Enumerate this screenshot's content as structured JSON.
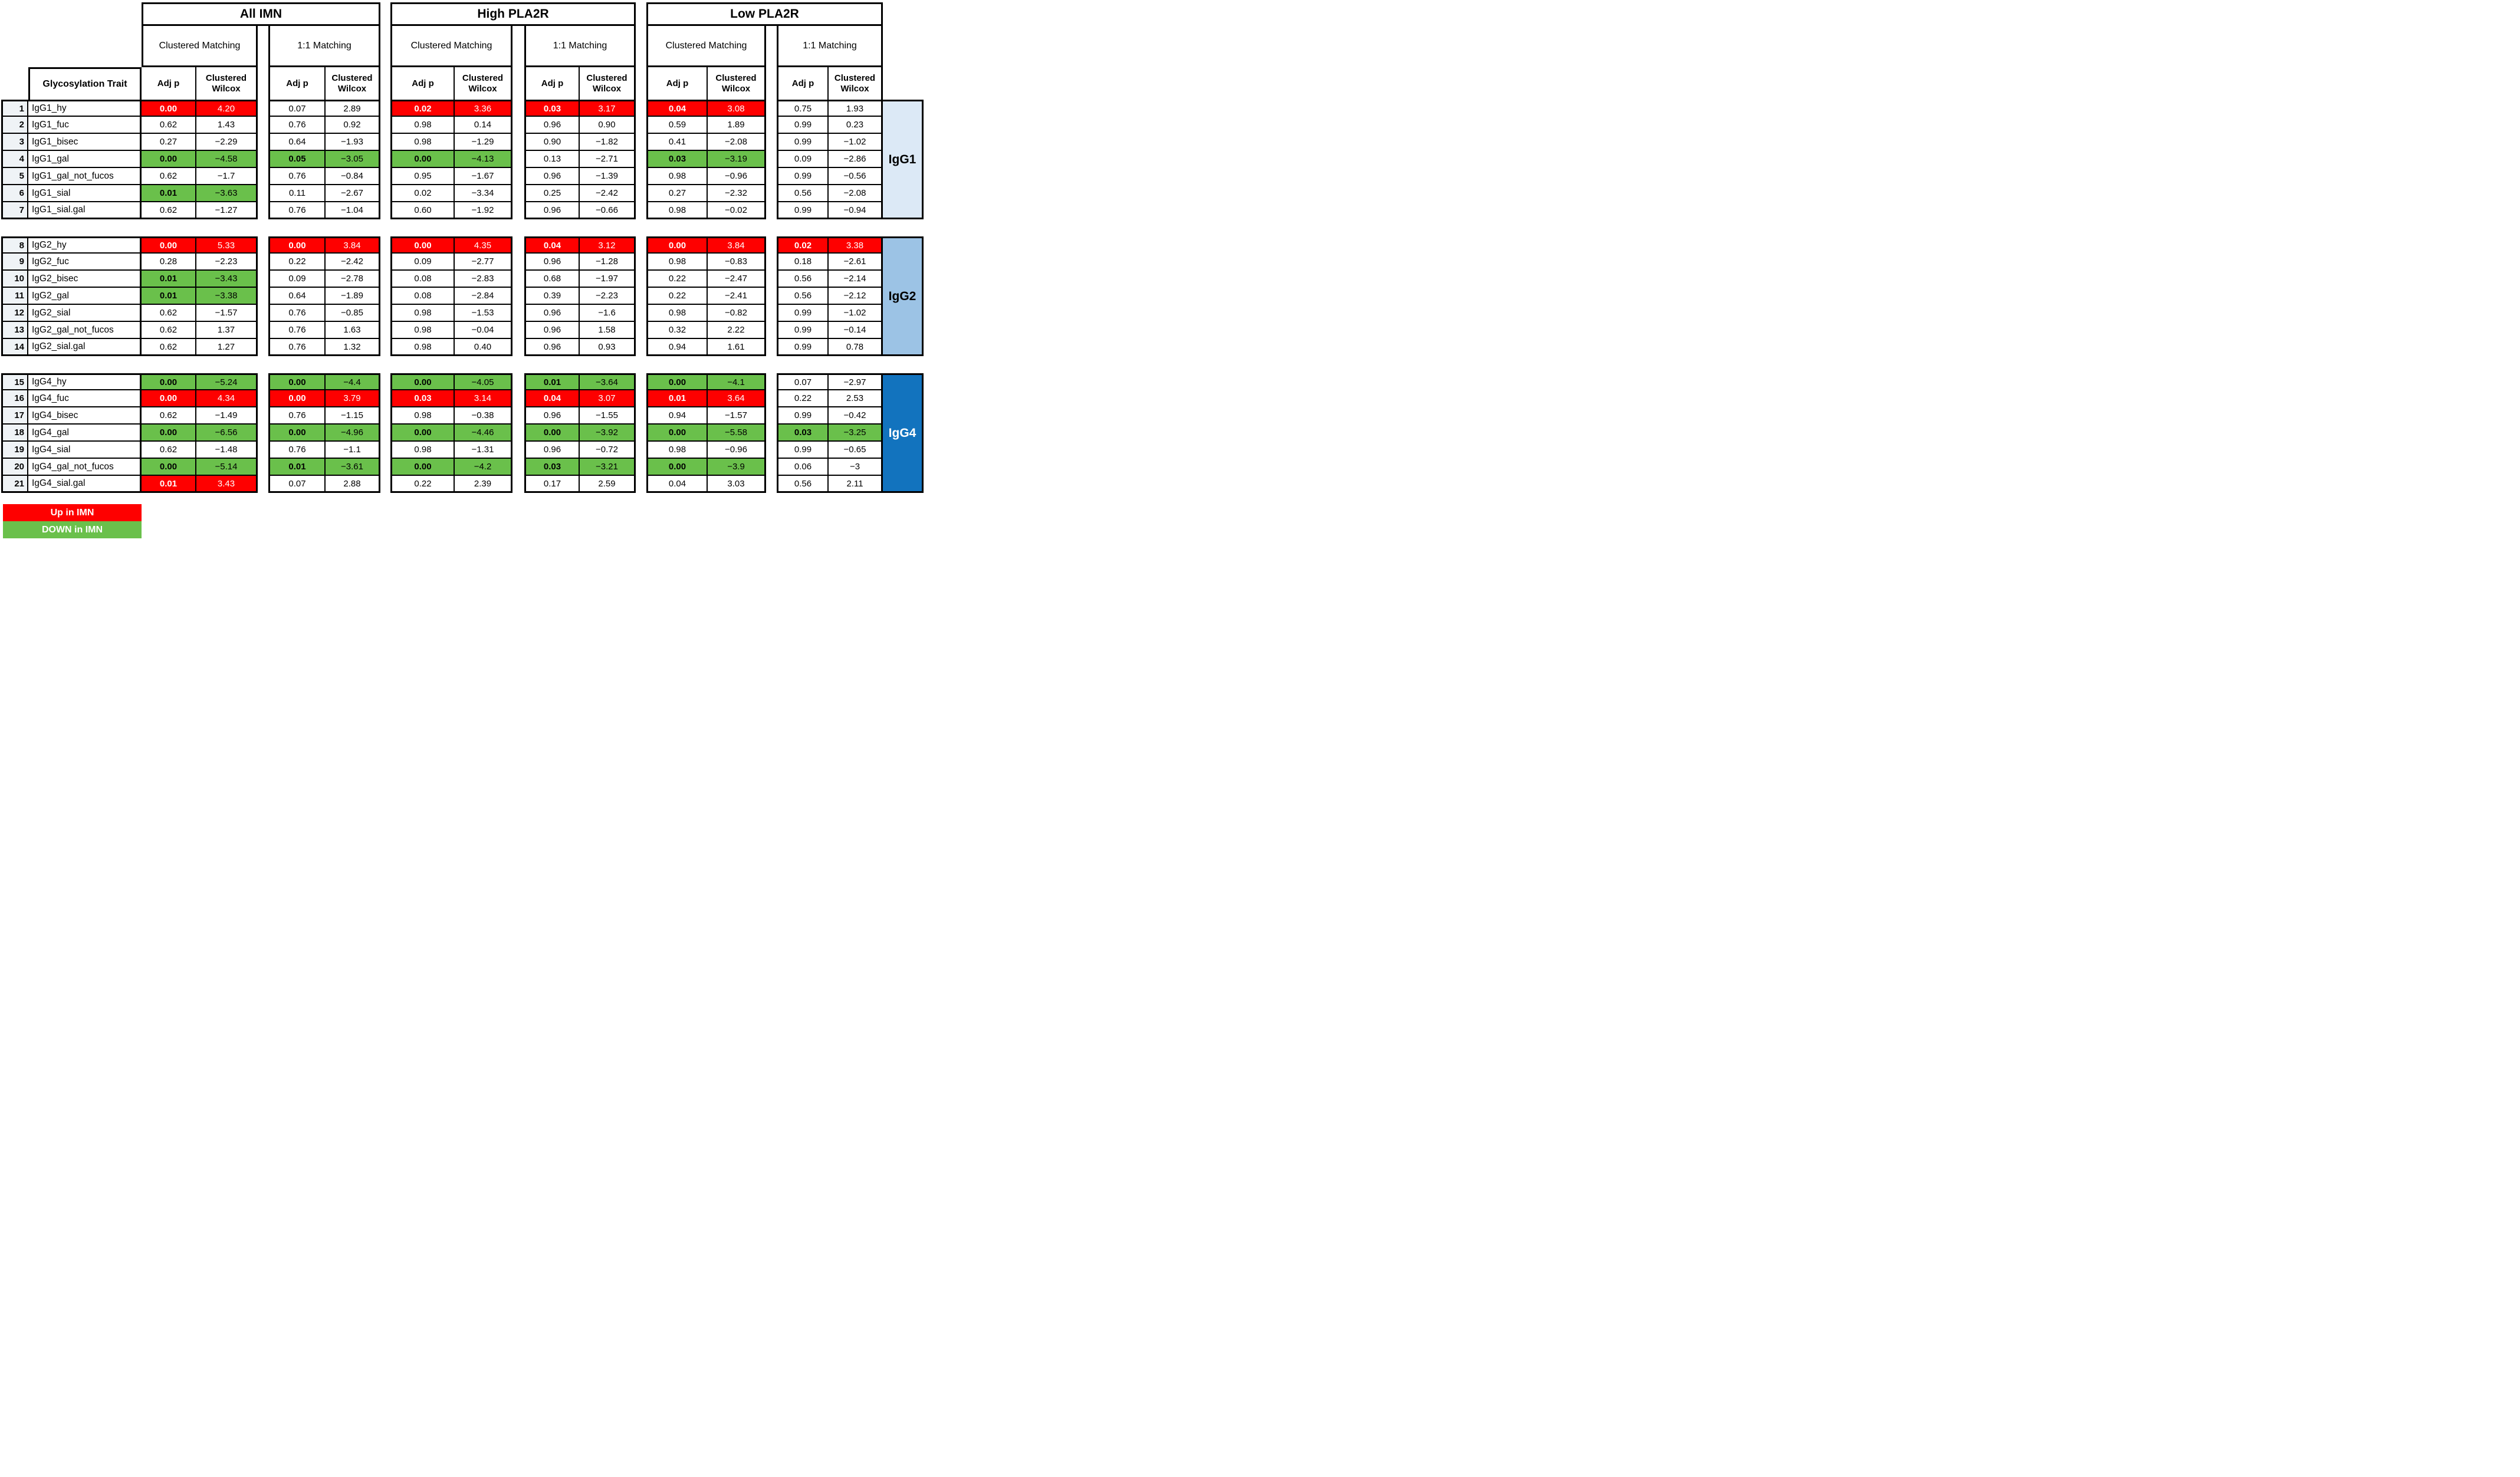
{
  "colors": {
    "up_in_imn": "#FE0000",
    "down_in_imn": "#6AC04B",
    "igg1_bar": "#DCE9F6",
    "igg2_bar": "#9CC3E5",
    "igg4_bar": "#1273BE",
    "row_number_bg": "#EFF3F6"
  },
  "legend": [
    {
      "label": "Up in IMN",
      "color_key": "up_in_imn"
    },
    {
      "label": "DOWN in IMN",
      "color_key": "down_in_imn"
    }
  ],
  "chart_data": {
    "type": "table",
    "title": "",
    "row_label_header": "Glycosylation Trait",
    "groups": [
      "All IMN",
      "High PLA2R",
      "Low PLA2R"
    ],
    "matching": [
      "Clustered Matching",
      "1:1 Matching"
    ],
    "stat_columns": [
      "Adj p",
      "Clustered Wilcox"
    ],
    "cell_order_note": "cells = [All-Clustered, All-1:1, High-Clustered, High-1:1, Low-Clustered, Low-1:1]; each cell = [Adj p, Clustered Wilcox, highlight('up'|'down'|'')]",
    "blocks": [
      {
        "group_label": "IgG1",
        "bar_color_key": "igg1_bar",
        "bar_text_color": "#000000",
        "rows": [
          {
            "num": "1",
            "trait": "IgG1_hy",
            "cells": [
              [
                "0.00",
                "4.20",
                "up"
              ],
              [
                "0.07",
                "2.89",
                ""
              ],
              [
                "0.02",
                "3.36",
                "up"
              ],
              [
                "0.03",
                "3.17",
                "up"
              ],
              [
                "0.04",
                "3.08",
                "up"
              ],
              [
                "0.75",
                "1.93",
                ""
              ]
            ]
          },
          {
            "num": "2",
            "trait": "IgG1_fuc",
            "cells": [
              [
                "0.62",
                "1.43",
                ""
              ],
              [
                "0.76",
                "0.92",
                ""
              ],
              [
                "0.98",
                "0.14",
                ""
              ],
              [
                "0.96",
                "0.90",
                ""
              ],
              [
                "0.59",
                "1.89",
                ""
              ],
              [
                "0.99",
                "0.23",
                ""
              ]
            ]
          },
          {
            "num": "3",
            "trait": "IgG1_bisec",
            "cells": [
              [
                "0.27",
                "−2.29",
                ""
              ],
              [
                "0.64",
                "−1.93",
                ""
              ],
              [
                "0.98",
                "−1.29",
                ""
              ],
              [
                "0.90",
                "−1.82",
                ""
              ],
              [
                "0.41",
                "−2.08",
                ""
              ],
              [
                "0.99",
                "−1.02",
                ""
              ]
            ]
          },
          {
            "num": "4",
            "trait": "IgG1_gal",
            "cells": [
              [
                "0.00",
                "−4.58",
                "down"
              ],
              [
                "0.05",
                "−3.05",
                "down"
              ],
              [
                "0.00",
                "−4.13",
                "down"
              ],
              [
                "0.13",
                "−2.71",
                ""
              ],
              [
                "0.03",
                "−3.19",
                "down"
              ],
              [
                "0.09",
                "−2.86",
                ""
              ]
            ]
          },
          {
            "num": "5",
            "trait": "IgG1_gal_not_fucos",
            "cells": [
              [
                "0.62",
                "−1.7",
                ""
              ],
              [
                "0.76",
                "−0.84",
                ""
              ],
              [
                "0.95",
                "−1.67",
                ""
              ],
              [
                "0.96",
                "−1.39",
                ""
              ],
              [
                "0.98",
                "−0.96",
                ""
              ],
              [
                "0.99",
                "−0.56",
                ""
              ]
            ]
          },
          {
            "num": "6",
            "trait": "IgG1_sial",
            "cells": [
              [
                "0.01",
                "−3.63",
                "down"
              ],
              [
                "0.11",
                "−2.67",
                ""
              ],
              [
                "0.02",
                "−3.34",
                ""
              ],
              [
                "0.25",
                "−2.42",
                ""
              ],
              [
                "0.27",
                "−2.32",
                ""
              ],
              [
                "0.56",
                "−2.08",
                ""
              ]
            ]
          },
          {
            "num": "7",
            "trait": "IgG1_sial.gal",
            "cells": [
              [
                "0.62",
                "−1.27",
                ""
              ],
              [
                "0.76",
                "−1.04",
                ""
              ],
              [
                "0.60",
                "−1.92",
                ""
              ],
              [
                "0.96",
                "−0.66",
                ""
              ],
              [
                "0.98",
                "−0.02",
                ""
              ],
              [
                "0.99",
                "−0.94",
                ""
              ]
            ]
          }
        ]
      },
      {
        "group_label": "IgG2",
        "bar_color_key": "igg2_bar",
        "bar_text_color": "#000000",
        "rows": [
          {
            "num": "8",
            "trait": "IgG2_hy",
            "cells": [
              [
                "0.00",
                "5.33",
                "up"
              ],
              [
                "0.00",
                "3.84",
                "up"
              ],
              [
                "0.00",
                "4.35",
                "up"
              ],
              [
                "0.04",
                "3.12",
                "up"
              ],
              [
                "0.00",
                "3.84",
                "up"
              ],
              [
                "0.02",
                "3.38",
                "up"
              ]
            ]
          },
          {
            "num": "9",
            "trait": "IgG2_fuc",
            "cells": [
              [
                "0.28",
                "−2.23",
                ""
              ],
              [
                "0.22",
                "−2.42",
                ""
              ],
              [
                "0.09",
                "−2.77",
                ""
              ],
              [
                "0.96",
                "−1.28",
                ""
              ],
              [
                "0.98",
                "−0.83",
                ""
              ],
              [
                "0.18",
                "−2.61",
                ""
              ]
            ]
          },
          {
            "num": "10",
            "trait": "IgG2_bisec",
            "cells": [
              [
                "0.01",
                "−3.43",
                "down"
              ],
              [
                "0.09",
                "−2.78",
                ""
              ],
              [
                "0.08",
                "−2.83",
                ""
              ],
              [
                "0.68",
                "−1.97",
                ""
              ],
              [
                "0.22",
                "−2.47",
                ""
              ],
              [
                "0.56",
                "−2.14",
                ""
              ]
            ]
          },
          {
            "num": "11",
            "trait": "IgG2_gal",
            "cells": [
              [
                "0.01",
                "−3.38",
                "down"
              ],
              [
                "0.64",
                "−1.89",
                ""
              ],
              [
                "0.08",
                "−2.84",
                ""
              ],
              [
                "0.39",
                "−2.23",
                ""
              ],
              [
                "0.22",
                "−2.41",
                ""
              ],
              [
                "0.56",
                "−2.12",
                ""
              ]
            ]
          },
          {
            "num": "12",
            "trait": "IgG2_sial",
            "cells": [
              [
                "0.62",
                "−1.57",
                ""
              ],
              [
                "0.76",
                "−0.85",
                ""
              ],
              [
                "0.98",
                "−1.53",
                ""
              ],
              [
                "0.96",
                "−1.6",
                ""
              ],
              [
                "0.98",
                "−0.82",
                ""
              ],
              [
                "0.99",
                "−1.02",
                ""
              ]
            ]
          },
          {
            "num": "13",
            "trait": "IgG2_gal_not_fucos",
            "cells": [
              [
                "0.62",
                "1.37",
                ""
              ],
              [
                "0.76",
                "1.63",
                ""
              ],
              [
                "0.98",
                "−0.04",
                ""
              ],
              [
                "0.96",
                "1.58",
                ""
              ],
              [
                "0.32",
                "2.22",
                ""
              ],
              [
                "0.99",
                "−0.14",
                ""
              ]
            ]
          },
          {
            "num": "14",
            "trait": "IgG2_sial.gal",
            "cells": [
              [
                "0.62",
                "1.27",
                ""
              ],
              [
                "0.76",
                "1.32",
                ""
              ],
              [
                "0.98",
                "0.40",
                ""
              ],
              [
                "0.96",
                "0.93",
                ""
              ],
              [
                "0.94",
                "1.61",
                ""
              ],
              [
                "0.99",
                "0.78",
                ""
              ]
            ]
          }
        ]
      },
      {
        "group_label": "IgG4",
        "bar_color_key": "igg4_bar",
        "bar_text_color": "#FFFFFF",
        "rows": [
          {
            "num": "15",
            "trait": "IgG4_hy",
            "cells": [
              [
                "0.00",
                "−5.24",
                "down"
              ],
              [
                "0.00",
                "−4.4",
                "down"
              ],
              [
                "0.00",
                "−4.05",
                "down"
              ],
              [
                "0.01",
                "−3.64",
                "down"
              ],
              [
                "0.00",
                "−4.1",
                "down"
              ],
              [
                "0.07",
                "−2.97",
                ""
              ]
            ]
          },
          {
            "num": "16",
            "trait": "IgG4_fuc",
            "cells": [
              [
                "0.00",
                "4.34",
                "up"
              ],
              [
                "0.00",
                "3.79",
                "up"
              ],
              [
                "0.03",
                "3.14",
                "up"
              ],
              [
                "0.04",
                "3.07",
                "up"
              ],
              [
                "0.01",
                "3.64",
                "up"
              ],
              [
                "0.22",
                "2.53",
                ""
              ]
            ]
          },
          {
            "num": "17",
            "trait": "IgG4_bisec",
            "cells": [
              [
                "0.62",
                "−1.49",
                ""
              ],
              [
                "0.76",
                "−1.15",
                ""
              ],
              [
                "0.98",
                "−0.38",
                ""
              ],
              [
                "0.96",
                "−1.55",
                ""
              ],
              [
                "0.94",
                "−1.57",
                ""
              ],
              [
                "0.99",
                "−0.42",
                ""
              ]
            ]
          },
          {
            "num": "18",
            "trait": "IgG4_gal",
            "cells": [
              [
                "0.00",
                "−6.56",
                "down"
              ],
              [
                "0.00",
                "−4.96",
                "down"
              ],
              [
                "0.00",
                "−4.46",
                "down"
              ],
              [
                "0.00",
                "−3.92",
                "down"
              ],
              [
                "0.00",
                "−5.58",
                "down"
              ],
              [
                "0.03",
                "−3.25",
                "down"
              ]
            ]
          },
          {
            "num": "19",
            "trait": "IgG4_sial",
            "cells": [
              [
                "0.62",
                "−1.48",
                ""
              ],
              [
                "0.76",
                "−1.1",
                ""
              ],
              [
                "0.98",
                "−1.31",
                ""
              ],
              [
                "0.96",
                "−0.72",
                ""
              ],
              [
                "0.98",
                "−0.96",
                ""
              ],
              [
                "0.99",
                "−0.65",
                ""
              ]
            ]
          },
          {
            "num": "20",
            "trait": "IgG4_gal_not_fucos",
            "cells": [
              [
                "0.00",
                "−5.14",
                "down"
              ],
              [
                "0.01",
                "−3.61",
                "down"
              ],
              [
                "0.00",
                "−4.2",
                "down"
              ],
              [
                "0.03",
                "−3.21",
                "down"
              ],
              [
                "0.00",
                "−3.9",
                "down"
              ],
              [
                "0.06",
                "−3",
                ""
              ]
            ]
          },
          {
            "num": "21",
            "trait": "IgG4_sial.gal",
            "cells": [
              [
                "0.01",
                "3.43",
                "up"
              ],
              [
                "0.07",
                "2.88",
                ""
              ],
              [
                "0.22",
                "2.39",
                ""
              ],
              [
                "0.17",
                "2.59",
                ""
              ],
              [
                "0.04",
                "3.03",
                ""
              ],
              [
                "0.56",
                "2.11",
                ""
              ]
            ]
          }
        ]
      }
    ]
  }
}
